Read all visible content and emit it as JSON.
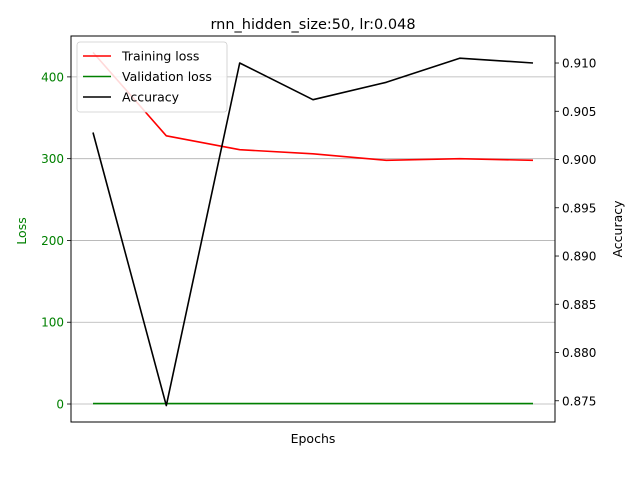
{
  "chart_data": {
    "type": "line",
    "title": "rnn_hidden_size:50, lr:0.048",
    "xlabel": "Epochs",
    "ylabel_left": "Loss",
    "ylabel_right": "Accuracy",
    "x": [
      1,
      2,
      3,
      4,
      5,
      6,
      7
    ],
    "xlim": [
      0.7,
      7.3
    ],
    "ylim_left": [
      -22,
      450
    ],
    "ylim_right": [
      0.8728,
      0.9128
    ],
    "yticks_left": [
      0,
      100,
      200,
      300,
      400
    ],
    "yticks_right": [
      0.875,
      0.88,
      0.885,
      0.89,
      0.895,
      0.9,
      0.905,
      0.91
    ],
    "grid": "horizontal, left axis",
    "legend_position": "top-left",
    "series": [
      {
        "name": "Training loss",
        "axis": "left",
        "color": "#ff0000",
        "values": [
          430,
          328,
          311,
          306,
          298,
          300,
          298
        ]
      },
      {
        "name": "Validation loss",
        "axis": "left",
        "color": "#008000",
        "values": [
          0.5,
          0.5,
          0.5,
          0.5,
          0.5,
          0.5,
          0.5
        ]
      },
      {
        "name": "Accuracy",
        "axis": "right",
        "color": "#000000",
        "values": [
          0.9028,
          0.8745,
          0.91,
          0.9062,
          0.908,
          0.9105,
          0.91
        ]
      }
    ],
    "colors": {
      "left_axis_text": "#008000",
      "grid": "#b0b0b0",
      "frame": "#000000"
    }
  }
}
